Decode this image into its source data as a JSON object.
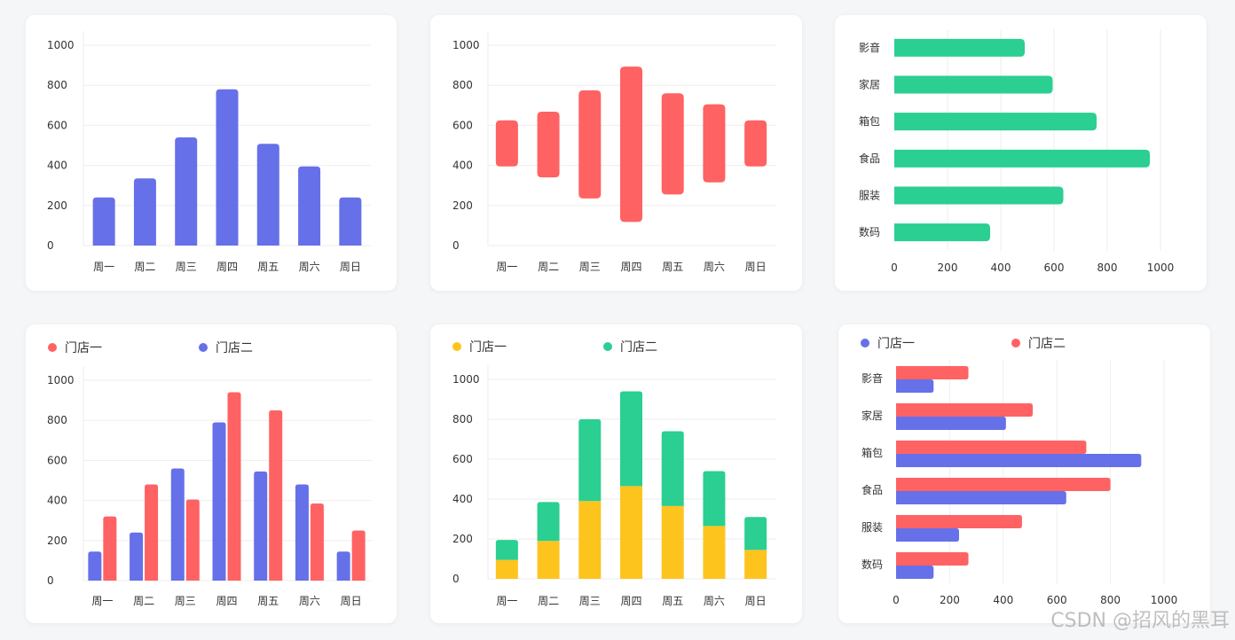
{
  "colors": {
    "blue": "#6670e8",
    "red": "#ff6262",
    "green": "#2acf91",
    "yellow": "#fec41e",
    "grid": "#eeeeee",
    "text": "#333333"
  },
  "watermark": "CSDN @招风的黑耳",
  "chart_data": [
    {
      "type": "bar",
      "title": "",
      "categories": [
        "周一",
        "周二",
        "周三",
        "周四",
        "周五",
        "周六",
        "周日"
      ],
      "values": [
        240,
        335,
        540,
        780,
        508,
        395,
        240
      ],
      "ylim": [
        0,
        1000
      ],
      "yticks": [
        "0",
        "200",
        "400",
        "600",
        "800",
        "1000"
      ],
      "color": "blue"
    },
    {
      "type": "bar",
      "subtype": "floating-range",
      "title": "",
      "categories": [
        "周一",
        "周二",
        "周三",
        "周四",
        "周五",
        "周六",
        "周日"
      ],
      "low": [
        395,
        340,
        235,
        118,
        255,
        315,
        395
      ],
      "high": [
        625,
        668,
        775,
        893,
        760,
        705,
        625
      ],
      "ylim": [
        0,
        1000
      ],
      "yticks": [
        "0",
        "200",
        "400",
        "600",
        "800",
        "1000"
      ],
      "color": "red"
    },
    {
      "type": "bar",
      "orientation": "horizontal",
      "title": "",
      "categories": [
        "影音",
        "家居",
        "箱包",
        "食品",
        "服装",
        "数码"
      ],
      "values": [
        490,
        595,
        760,
        960,
        635,
        360
      ],
      "xlim": [
        0,
        1000
      ],
      "xticks": [
        "0",
        "200",
        "400",
        "600",
        "800",
        "1000"
      ],
      "color": "green"
    },
    {
      "type": "bar",
      "title": "",
      "categories": [
        "周一",
        "周二",
        "周三",
        "周四",
        "周五",
        "周六",
        "周日"
      ],
      "legend": [
        "门店一",
        "门店二"
      ],
      "series": [
        {
          "name": "门店一",
          "color": "red",
          "values": [
            320,
            480,
            405,
            940,
            850,
            385,
            250
          ]
        },
        {
          "name": "门店二",
          "color": "blue",
          "values": [
            145,
            240,
            560,
            790,
            545,
            480,
            145
          ]
        }
      ],
      "draw_order": [
        1,
        0
      ],
      "ylim": [
        0,
        1000
      ],
      "yticks": [
        "0",
        "200",
        "400",
        "600",
        "800",
        "1000"
      ]
    },
    {
      "type": "bar",
      "subtype": "stacked",
      "title": "",
      "categories": [
        "周一",
        "周二",
        "周三",
        "周四",
        "周五",
        "周六",
        "周日"
      ],
      "legend": [
        "门店一",
        "门店二"
      ],
      "series": [
        {
          "name": "门店一",
          "color": "yellow",
          "values": [
            95,
            190,
            390,
            465,
            365,
            265,
            145
          ]
        },
        {
          "name": "门店二",
          "color": "green",
          "values": [
            100,
            195,
            410,
            475,
            375,
            275,
            165
          ]
        }
      ],
      "ylim": [
        0,
        1000
      ],
      "yticks": [
        "0",
        "200",
        "400",
        "600",
        "800",
        "1000"
      ]
    },
    {
      "type": "bar",
      "orientation": "horizontal",
      "title": "",
      "categories": [
        "影音",
        "家居",
        "箱包",
        "食品",
        "服装",
        "数码"
      ],
      "legend": [
        "门店一",
        "门店二"
      ],
      "series": [
        {
          "name": "门店一",
          "color": "blue",
          "values": [
            140,
            410,
            915,
            635,
            235,
            140
          ]
        },
        {
          "name": "门店二",
          "color": "red",
          "values": [
            270,
            510,
            710,
            800,
            470,
            270
          ]
        }
      ],
      "xlim": [
        0,
        1000
      ],
      "xticks": [
        "0",
        "200",
        "400",
        "600",
        "800",
        "1000"
      ]
    }
  ]
}
